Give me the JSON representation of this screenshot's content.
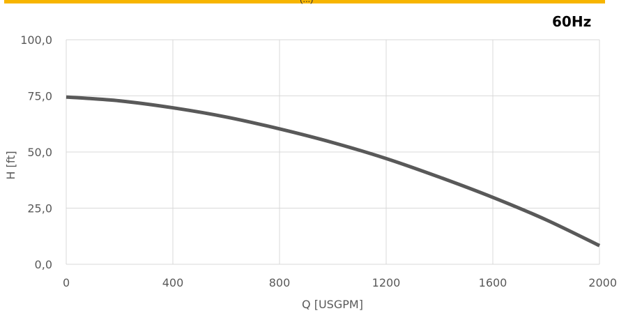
{
  "header": {
    "accent_color": "#f7b500",
    "top_text": "(...)",
    "frequency": "60Hz"
  },
  "chart_data": {
    "type": "line",
    "xlabel": "Q [USGPM]",
    "ylabel": "H [ft]",
    "xlim": [
      0,
      2000
    ],
    "ylim": [
      0,
      100
    ],
    "x_ticks": [
      0,
      400,
      800,
      1200,
      1600,
      2000
    ],
    "y_ticks": [
      0,
      25,
      50,
      75,
      100
    ],
    "y_tick_labels": [
      "0,0",
      "25,0",
      "50,0",
      "75,0",
      "100,0"
    ],
    "x_tick_labels": [
      "0",
      "400",
      "800",
      "1200",
      "1600",
      "2000"
    ],
    "grid": true,
    "line_color": "#595959",
    "series": [
      {
        "x": [
          0,
          200,
          400,
          600,
          800,
          1000,
          1200,
          1400,
          1600,
          1800,
          2000
        ],
        "y": [
          74.5,
          72.8,
          69.7,
          65.6,
          60.3,
          54.2,
          47.1,
          38.8,
          29.8,
          19.8,
          8.3
        ]
      }
    ]
  }
}
